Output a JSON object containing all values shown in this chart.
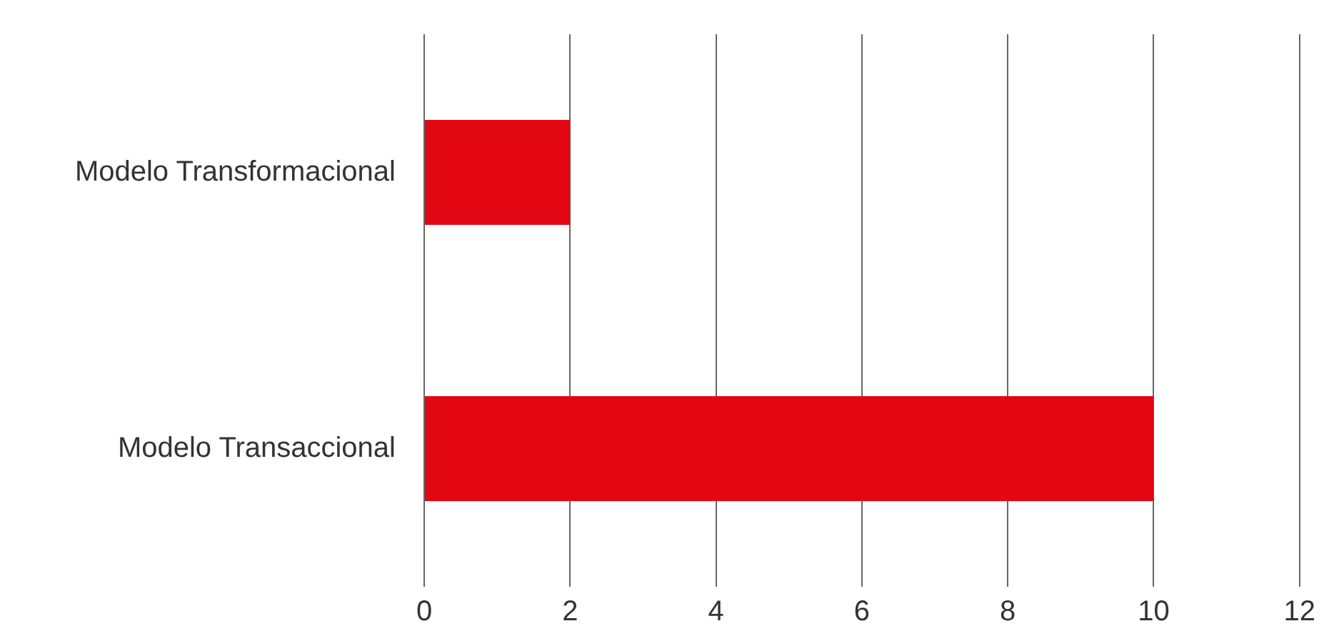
{
  "chart_data": {
    "type": "bar",
    "orientation": "horizontal",
    "categories": [
      "Modelo Transformacional",
      "Modelo Transaccional"
    ],
    "series": [
      {
        "color": "#e30613",
        "values": [
          2,
          10
        ]
      }
    ],
    "xlim": [
      0,
      12
    ],
    "xticks": [
      0,
      2,
      4,
      6,
      8,
      10,
      12
    ],
    "grid": "x",
    "legend": false
  }
}
